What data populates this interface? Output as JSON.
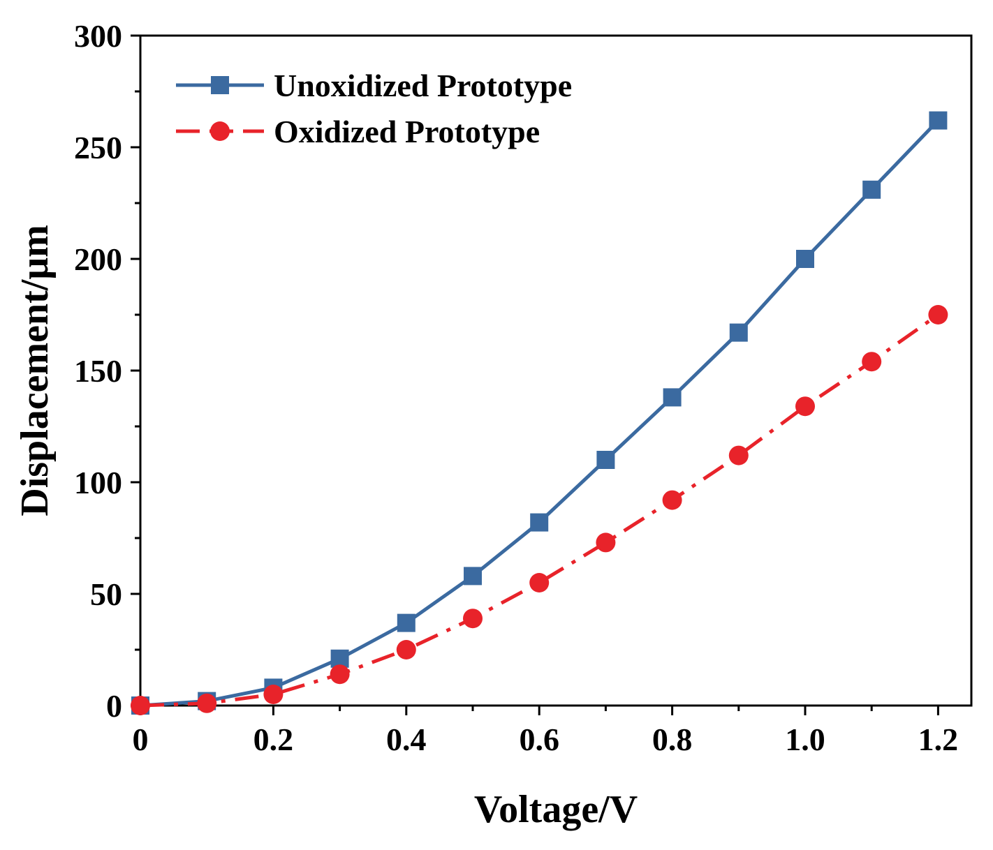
{
  "chart_data": {
    "type": "line",
    "title": "",
    "xlabel": "Voltage/V",
    "ylabel": "Displacement/μm",
    "xlim": [
      0,
      1.25
    ],
    "ylim": [
      0,
      300
    ],
    "xticks": [
      0,
      0.2,
      0.4,
      0.6,
      0.8,
      1.0,
      1.2
    ],
    "xtick_labels": [
      "0",
      "0.2",
      "0.4",
      "0.6",
      "0.8",
      "1.0",
      "1.2"
    ],
    "yticks": [
      0,
      50,
      100,
      150,
      200,
      250,
      300
    ],
    "ytick_labels": [
      "0",
      "50",
      "100",
      "150",
      "200",
      "250",
      "300"
    ],
    "legend_position": "top-left",
    "grid": false,
    "x": [
      0,
      0.1,
      0.2,
      0.3,
      0.4,
      0.5,
      0.6,
      0.7,
      0.8,
      0.9,
      1.0,
      1.1,
      1.2
    ],
    "series": [
      {
        "name": "Unoxidized Prototype",
        "color": "#3b6aa0",
        "marker": "square",
        "linestyle": "solid",
        "values": [
          0,
          2,
          8,
          21,
          37,
          58,
          82,
          110,
          138,
          167,
          200,
          231,
          262
        ]
      },
      {
        "name": "Oxidized Prototype",
        "color": "#e8232a",
        "marker": "circle",
        "linestyle": "dash-dot",
        "values": [
          0,
          1,
          5,
          14,
          25,
          39,
          55,
          73,
          92,
          112,
          134,
          154,
          175
        ]
      }
    ]
  }
}
